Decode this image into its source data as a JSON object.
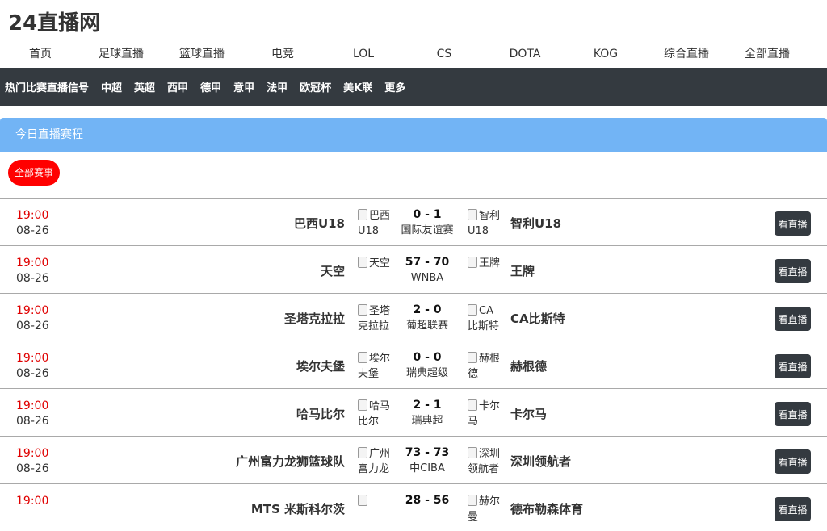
{
  "site": {
    "title": "24直播网"
  },
  "topnav": [
    "首页",
    "足球直播",
    "篮球直播",
    "电竞",
    "LOL",
    "CS",
    "DOTA",
    "KOG",
    "综合直播",
    "全部直播"
  ],
  "catbar": [
    "热门比赛直播信号",
    "中超",
    "英超",
    "西甲",
    "德甲",
    "意甲",
    "法甲",
    "欧冠杯",
    "美K联",
    "更多"
  ],
  "panel": {
    "title": "今日直播赛程"
  },
  "filter": {
    "label": "全部赛事"
  },
  "matches": [
    {
      "time": "19:00",
      "date": "08-26",
      "home": "巴西U18",
      "home_logo": "巴西 U18",
      "score": "0 - 1",
      "league": "国际友谊赛",
      "away_logo": "智利 U18",
      "away": "智利U18",
      "button": "看直播"
    },
    {
      "time": "19:00",
      "date": "08-26",
      "home": "天空",
      "home_logo": "天空",
      "score": "57 - 70",
      "league": "WNBA",
      "away_logo": "王牌",
      "away": "王牌",
      "button": "看直播"
    },
    {
      "time": "19:00",
      "date": "08-26",
      "home": "圣塔克拉拉",
      "home_logo": "圣塔 克拉拉",
      "score": "2 - 0",
      "league": "葡超联赛",
      "away_logo": "CA 比斯特",
      "away": "CA比斯特",
      "button": "看直播"
    },
    {
      "time": "19:00",
      "date": "08-26",
      "home": "埃尔夫堡",
      "home_logo": "埃尔 夫堡",
      "score": "0 - 0",
      "league": "瑞典超级",
      "away_logo": "赫根 德",
      "away": "赫根德",
      "button": "看直播"
    },
    {
      "time": "19:00",
      "date": "08-26",
      "home": "哈马比尔",
      "home_logo": "哈马 比尔",
      "score": "2 - 1",
      "league": "瑞典超",
      "away_logo": "卡尔 马",
      "away": "卡尔马",
      "button": "看直播"
    },
    {
      "time": "19:00",
      "date": "08-26",
      "home": "广州富力龙狮篮球队",
      "home_logo": "广州 富力龙",
      "score": "73 - 73",
      "league": "中CIBA",
      "away_logo": "深圳 领航者",
      "away": "深圳领航者",
      "button": "看直播"
    },
    {
      "time": "19:00",
      "date": "",
      "home": "MTS 米斯科尔茨",
      "home_logo": "",
      "score": "28 - 56",
      "league": "",
      "away_logo": "赫尔 曼",
      "away": "德布勒森体育",
      "button": "看直播"
    }
  ]
}
